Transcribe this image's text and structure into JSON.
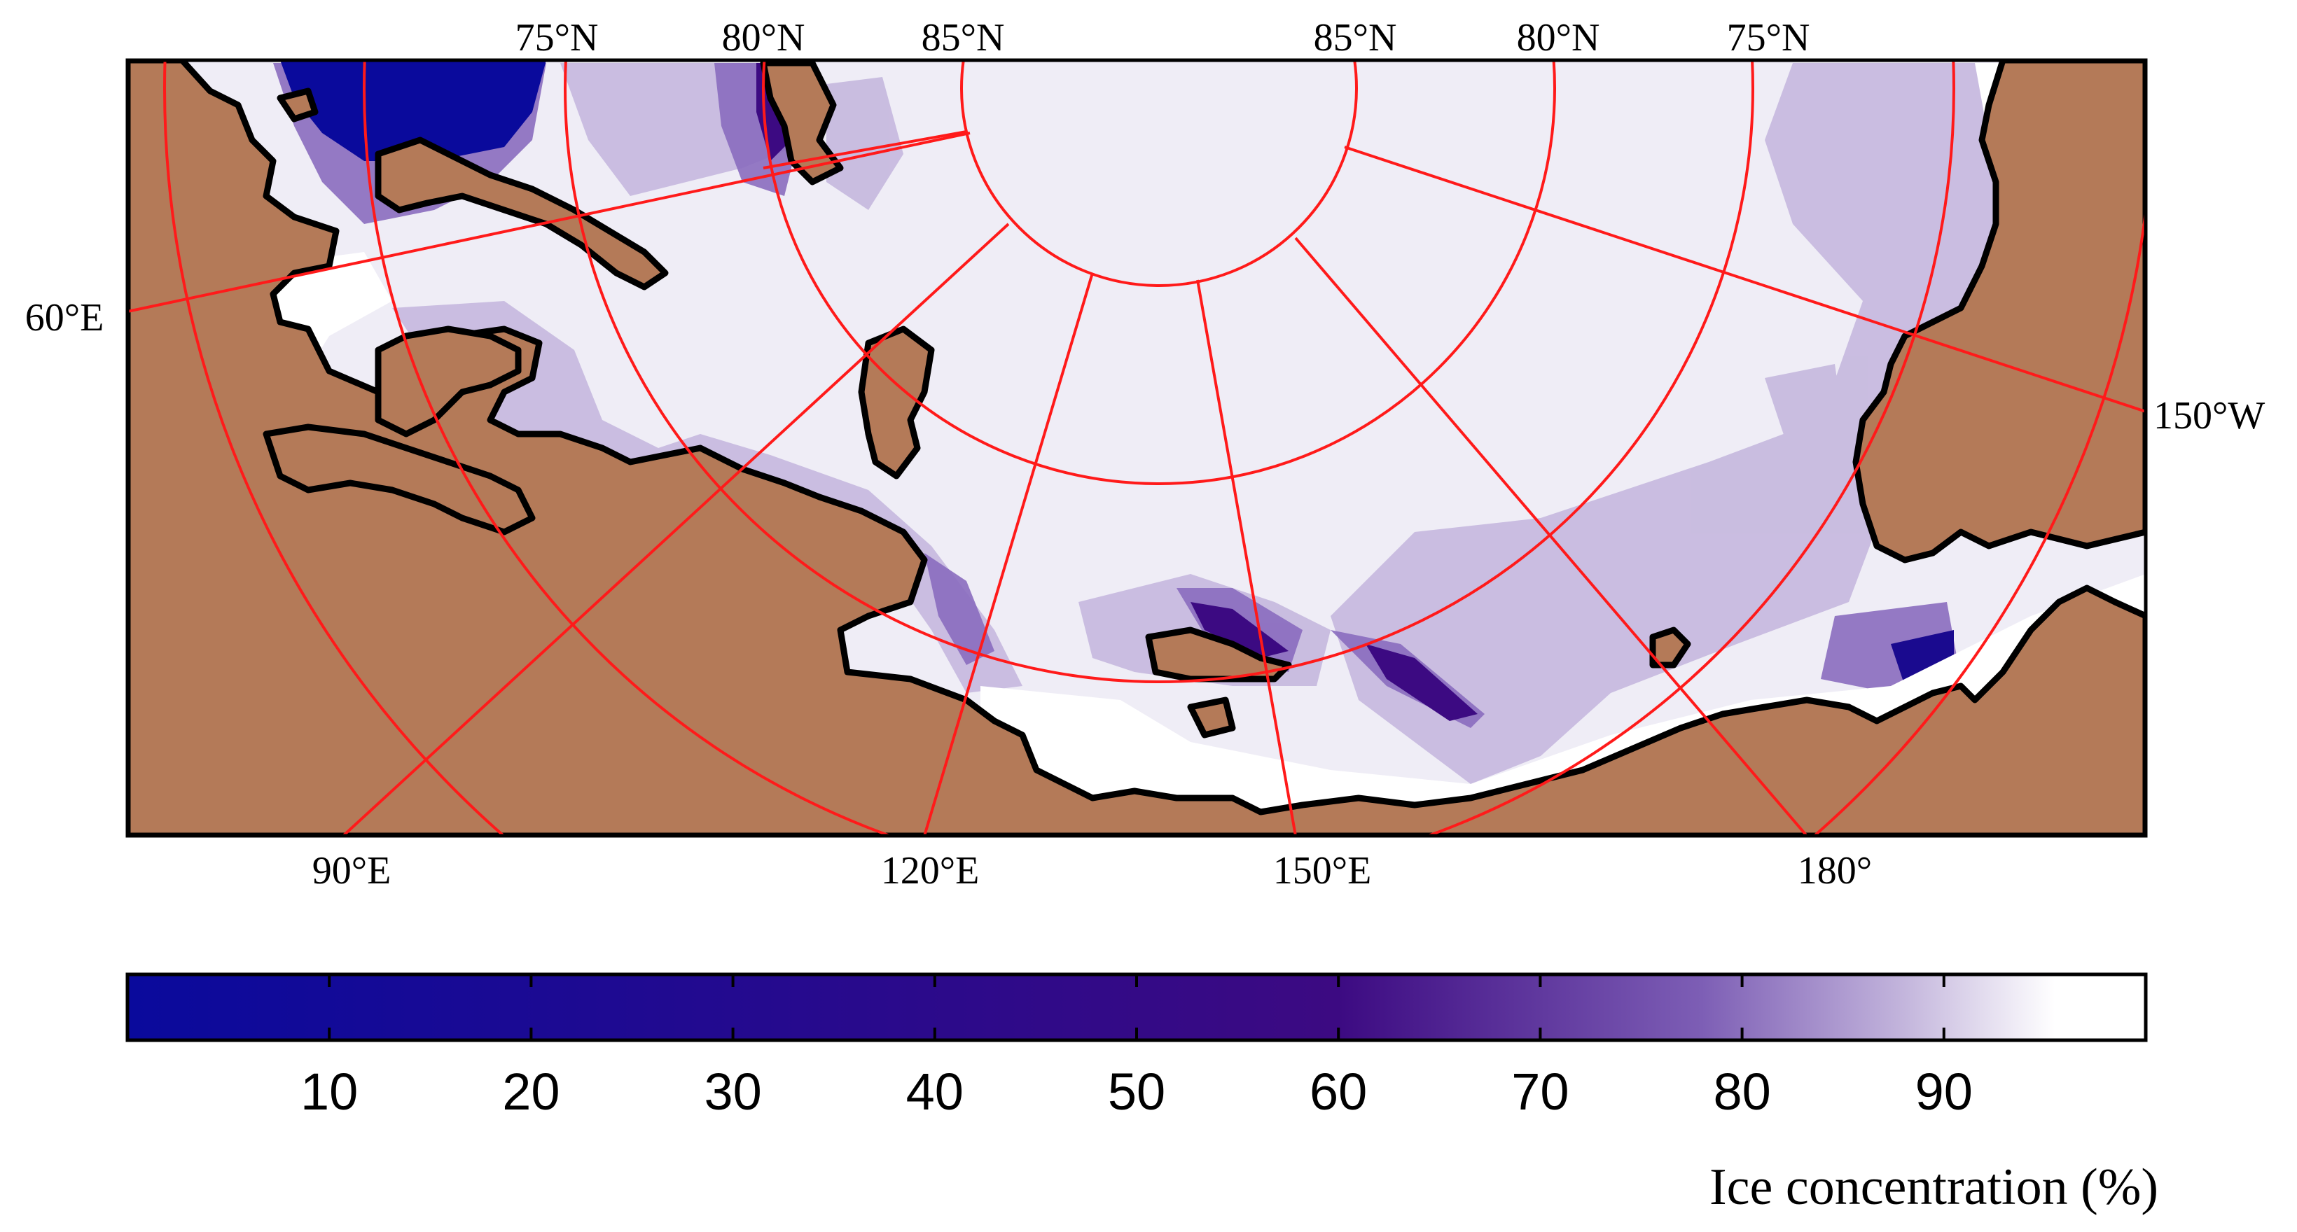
{
  "map": {
    "type": "polar-stereographic sea-ice concentration map",
    "colors": {
      "land": "#b47a58",
      "coastline": "#000000",
      "graticule": "#ff1a1a",
      "ocean_open": "#ffffff",
      "ice_high": "#efedf6"
    },
    "lat_labels_top": [
      "75°N",
      "80°N",
      "85°N",
      "85°N",
      "80°N",
      "75°N"
    ],
    "lon_labels_left": [
      "60°E"
    ],
    "lon_labels_bottom": [
      "90°E",
      "120°E",
      "150°E",
      "180°"
    ],
    "lon_labels_right": [
      "150°W"
    ]
  },
  "colorbar": {
    "title": "Ice concentration (%)",
    "ticks": [
      "10",
      "20",
      "30",
      "40",
      "50",
      "60",
      "70",
      "80",
      "90"
    ],
    "min": 0,
    "max": 100,
    "color_low": "#0a0a9c",
    "color_mid": "#3c0a82",
    "color_high": "#ffffff"
  }
}
